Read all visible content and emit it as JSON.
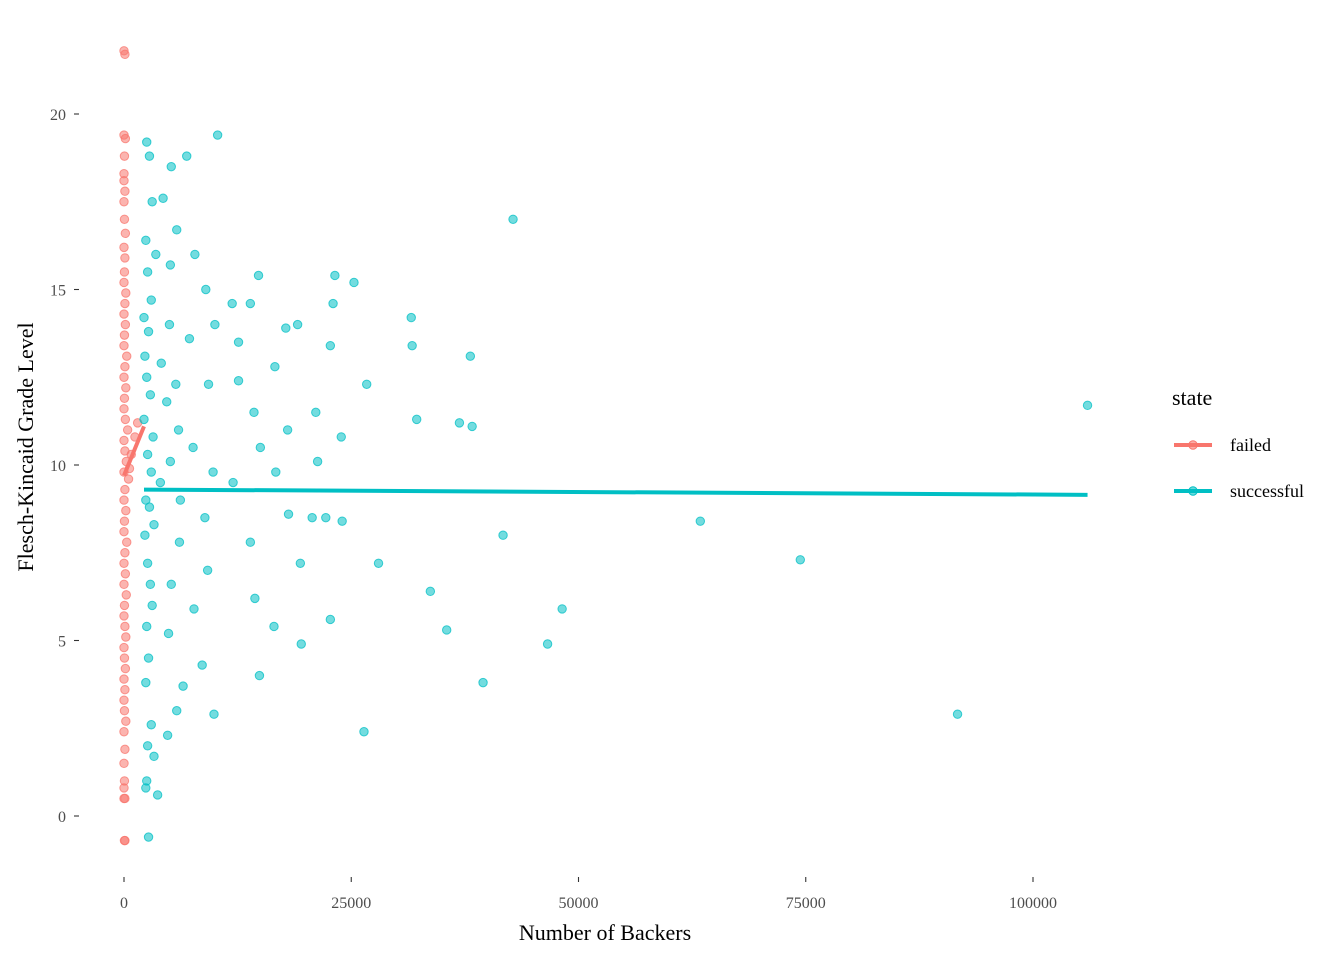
{
  "chart_data": {
    "type": "scatter",
    "title": "",
    "xlabel": "Number of Backers",
    "ylabel": "Flesch-Kincaid Grade Level",
    "xlim": [
      -3000,
      118000
    ],
    "ylim": [
      -1.7,
      22.5
    ],
    "x_ticks": [
      0,
      25000,
      50000,
      75000,
      100000
    ],
    "x_tick_labels": [
      "0",
      "25000",
      "50000",
      "75000",
      "100000"
    ],
    "y_ticks": [
      0,
      5,
      10,
      15,
      20
    ],
    "y_tick_labels": [
      "0",
      "5",
      "10",
      "15",
      "20"
    ],
    "grid": false,
    "legend": {
      "title": "state",
      "position": "right",
      "entries": [
        "failed",
        "successful"
      ]
    },
    "colors": {
      "failed": "#F8766D",
      "successful": "#00BFC4"
    },
    "series": [
      {
        "name": "failed",
        "color": "#F8766D",
        "points": [
          [
            0,
            21.8
          ],
          [
            100,
            21.7
          ],
          [
            0,
            19.4
          ],
          [
            150,
            19.3
          ],
          [
            50,
            18.8
          ],
          [
            0,
            18.3
          ],
          [
            0,
            18.1
          ],
          [
            100,
            17.8
          ],
          [
            0,
            17.5
          ],
          [
            50,
            17.0
          ],
          [
            150,
            16.6
          ],
          [
            0,
            16.2
          ],
          [
            100,
            15.9
          ],
          [
            50,
            15.5
          ],
          [
            0,
            15.2
          ],
          [
            200,
            14.9
          ],
          [
            100,
            14.6
          ],
          [
            0,
            14.3
          ],
          [
            150,
            14.0
          ],
          [
            50,
            13.7
          ],
          [
            0,
            13.4
          ],
          [
            300,
            13.1
          ],
          [
            100,
            12.8
          ],
          [
            0,
            12.5
          ],
          [
            200,
            12.2
          ],
          [
            50,
            11.9
          ],
          [
            0,
            11.6
          ],
          [
            150,
            11.3
          ],
          [
            400,
            11.0
          ],
          [
            0,
            10.7
          ],
          [
            100,
            10.4
          ],
          [
            250,
            10.1
          ],
          [
            0,
            9.8
          ],
          [
            500,
            9.6
          ],
          [
            100,
            9.3
          ],
          [
            0,
            9.0
          ],
          [
            200,
            8.7
          ],
          [
            50,
            8.4
          ],
          [
            0,
            8.1
          ],
          [
            300,
            7.8
          ],
          [
            100,
            7.5
          ],
          [
            0,
            7.2
          ],
          [
            150,
            6.9
          ],
          [
            0,
            6.6
          ],
          [
            250,
            6.3
          ],
          [
            50,
            6.0
          ],
          [
            0,
            5.7
          ],
          [
            100,
            5.4
          ],
          [
            200,
            5.1
          ],
          [
            0,
            4.8
          ],
          [
            50,
            4.5
          ],
          [
            150,
            4.2
          ],
          [
            0,
            3.9
          ],
          [
            100,
            3.6
          ],
          [
            0,
            3.3
          ],
          [
            50,
            3.0
          ],
          [
            200,
            2.7
          ],
          [
            0,
            2.4
          ],
          [
            100,
            1.9
          ],
          [
            0,
            1.5
          ],
          [
            50,
            1.0
          ],
          [
            0,
            0.8
          ],
          [
            0,
            0.5
          ],
          [
            100,
            0.5
          ],
          [
            50,
            -0.7
          ],
          [
            100,
            -0.7
          ],
          [
            800,
            10.3
          ],
          [
            1200,
            10.8
          ],
          [
            1500,
            11.2
          ],
          [
            600,
            9.9
          ]
        ]
      },
      {
        "name": "successful",
        "color": "#00BFC4",
        "points": [
          [
            2500,
            19.2
          ],
          [
            10300,
            19.4
          ],
          [
            2800,
            18.8
          ],
          [
            5200,
            18.5
          ],
          [
            6900,
            18.8
          ],
          [
            3100,
            17.5
          ],
          [
            4300,
            17.6
          ],
          [
            42800,
            17.0
          ],
          [
            2400,
            16.4
          ],
          [
            5800,
            16.7
          ],
          [
            3500,
            16.0
          ],
          [
            7800,
            16.0
          ],
          [
            2600,
            15.5
          ],
          [
            5100,
            15.7
          ],
          [
            14800,
            15.4
          ],
          [
            23200,
            15.4
          ],
          [
            25300,
            15.2
          ],
          [
            9000,
            15.0
          ],
          [
            3000,
            14.7
          ],
          [
            11900,
            14.6
          ],
          [
            13900,
            14.6
          ],
          [
            23000,
            14.6
          ],
          [
            2200,
            14.2
          ],
          [
            5000,
            14.0
          ],
          [
            10000,
            14.0
          ],
          [
            31600,
            14.2
          ],
          [
            17800,
            13.9
          ],
          [
            19100,
            14.0
          ],
          [
            2700,
            13.8
          ],
          [
            7200,
            13.6
          ],
          [
            12600,
            13.5
          ],
          [
            22700,
            13.4
          ],
          [
            31700,
            13.4
          ],
          [
            2300,
            13.1
          ],
          [
            4100,
            12.9
          ],
          [
            16600,
            12.8
          ],
          [
            38100,
            13.1
          ],
          [
            2500,
            12.5
          ],
          [
            5700,
            12.3
          ],
          [
            9300,
            12.3
          ],
          [
            12600,
            12.4
          ],
          [
            26700,
            12.3
          ],
          [
            2900,
            12.0
          ],
          [
            4700,
            11.8
          ],
          [
            14300,
            11.5
          ],
          [
            21100,
            11.5
          ],
          [
            2200,
            11.3
          ],
          [
            6000,
            11.0
          ],
          [
            18000,
            11.0
          ],
          [
            32200,
            11.3
          ],
          [
            36900,
            11.2
          ],
          [
            38300,
            11.1
          ],
          [
            3200,
            10.8
          ],
          [
            7600,
            10.5
          ],
          [
            15000,
            10.5
          ],
          [
            23900,
            10.8
          ],
          [
            2600,
            10.3
          ],
          [
            5100,
            10.1
          ],
          [
            21300,
            10.1
          ],
          [
            3000,
            9.8
          ],
          [
            9800,
            9.8
          ],
          [
            16700,
            9.8
          ],
          [
            4000,
            9.5
          ],
          [
            12000,
            9.5
          ],
          [
            2400,
            9.0
          ],
          [
            6200,
            9.0
          ],
          [
            2800,
            8.8
          ],
          [
            8900,
            8.5
          ],
          [
            18100,
            8.6
          ],
          [
            20700,
            8.5
          ],
          [
            22200,
            8.5
          ],
          [
            3300,
            8.3
          ],
          [
            24000,
            8.4
          ],
          [
            63400,
            8.4
          ],
          [
            41700,
            8.0
          ],
          [
            2300,
            8.0
          ],
          [
            6100,
            7.8
          ],
          [
            13900,
            7.8
          ],
          [
            28000,
            7.2
          ],
          [
            74400,
            7.3
          ],
          [
            2600,
            7.2
          ],
          [
            9200,
            7.0
          ],
          [
            19400,
            7.2
          ],
          [
            2900,
            6.6
          ],
          [
            5200,
            6.6
          ],
          [
            33700,
            6.4
          ],
          [
            14400,
            6.2
          ],
          [
            3100,
            6.0
          ],
          [
            7700,
            5.9
          ],
          [
            48200,
            5.9
          ],
          [
            22700,
            5.6
          ],
          [
            2500,
            5.4
          ],
          [
            16500,
            5.4
          ],
          [
            35500,
            5.3
          ],
          [
            4900,
            5.2
          ],
          [
            46600,
            4.9
          ],
          [
            19500,
            4.9
          ],
          [
            2700,
            4.5
          ],
          [
            8600,
            4.3
          ],
          [
            14900,
            4.0
          ],
          [
            2400,
            3.8
          ],
          [
            6500,
            3.7
          ],
          [
            39500,
            3.8
          ],
          [
            91700,
            2.9
          ],
          [
            5800,
            3.0
          ],
          [
            9900,
            2.9
          ],
          [
            26400,
            2.4
          ],
          [
            3000,
            2.6
          ],
          [
            4800,
            2.3
          ],
          [
            2600,
            2.0
          ],
          [
            3300,
            1.7
          ],
          [
            2500,
            1.0
          ],
          [
            2400,
            0.8
          ],
          [
            3700,
            0.6
          ],
          [
            2700,
            -0.6
          ],
          [
            106000,
            11.7
          ]
        ]
      }
    ],
    "trend_lines": [
      {
        "name": "failed",
        "color": "#F8766D",
        "x": [
          0,
          2200
        ],
        "y": [
          9.7,
          11.1
        ]
      },
      {
        "name": "successful",
        "color": "#00BFC4",
        "x": [
          2200,
          106000
        ],
        "y": [
          9.3,
          9.15
        ]
      }
    ]
  }
}
